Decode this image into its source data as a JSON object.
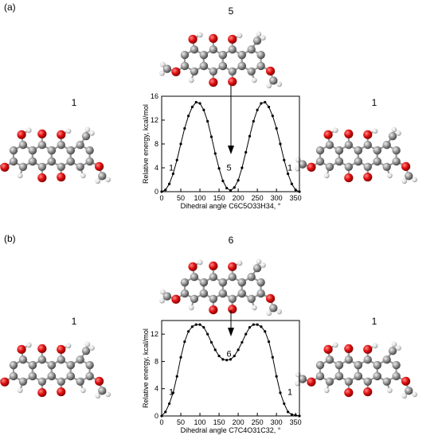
{
  "panels": [
    {
      "letter": "(a)",
      "top_label": "5",
      "left_label": "1",
      "right_label": "1",
      "chart_data": {
        "type": "line",
        "xlabel": "Dihedral angle C6C5O33H34, °",
        "ylabel": "Relative energy, kcal/mol",
        "xlim": [
          0,
          360
        ],
        "ylim": [
          0,
          16
        ],
        "xticks": [
          0,
          50,
          100,
          150,
          200,
          250,
          300,
          350
        ],
        "yticks": [
          0,
          4,
          8,
          12,
          16
        ],
        "x": [
          0,
          10,
          20,
          30,
          40,
          50,
          60,
          70,
          80,
          90,
          100,
          110,
          120,
          130,
          140,
          150,
          160,
          170,
          180,
          190,
          200,
          210,
          220,
          230,
          240,
          250,
          260,
          270,
          280,
          290,
          300,
          310,
          320,
          330,
          340,
          350,
          360
        ],
        "y": [
          0.0,
          0.3,
          1.3,
          3.0,
          5.3,
          8.0,
          10.6,
          12.7,
          14.2,
          15.0,
          14.8,
          13.7,
          11.8,
          9.2,
          6.4,
          3.9,
          1.8,
          0.6,
          0.2,
          0.7,
          1.9,
          4.0,
          6.6,
          9.3,
          11.8,
          13.7,
          14.8,
          15.0,
          14.2,
          12.7,
          10.6,
          8.0,
          5.3,
          3.0,
          1.3,
          0.3,
          0.0
        ],
        "annotations": [
          "1",
          "5",
          "1"
        ]
      }
    },
    {
      "letter": "(b)",
      "top_label": "6",
      "left_label": "1",
      "right_label": "1",
      "chart_data": {
        "type": "line",
        "xlabel": "Dihedral angle C7C4O31C32, °",
        "ylabel": "Relative energy, kcal/mol",
        "xlim": [
          0,
          360
        ],
        "ylim": [
          0,
          14
        ],
        "xticks": [
          0,
          50,
          100,
          150,
          200,
          250,
          300,
          350
        ],
        "yticks": [
          0,
          4,
          8,
          12
        ],
        "x": [
          0,
          10,
          20,
          30,
          40,
          50,
          60,
          70,
          80,
          90,
          100,
          110,
          120,
          130,
          140,
          150,
          160,
          170,
          180,
          190,
          200,
          210,
          220,
          230,
          240,
          250,
          260,
          270,
          280,
          290,
          300,
          310,
          320,
          330,
          340,
          350,
          360
        ],
        "y": [
          0.0,
          0.6,
          1.8,
          3.4,
          5.8,
          8.6,
          10.9,
          12.4,
          13.1,
          13.4,
          13.4,
          13.0,
          12.0,
          10.8,
          9.7,
          8.8,
          8.3,
          8.2,
          8.3,
          8.8,
          9.7,
          10.8,
          12.0,
          13.0,
          13.4,
          13.4,
          13.1,
          12.4,
          10.9,
          8.6,
          5.8,
          3.4,
          1.8,
          0.6,
          0.2,
          0.1,
          0.0
        ],
        "annotations": [
          "1",
          "6",
          "1"
        ]
      }
    }
  ]
}
